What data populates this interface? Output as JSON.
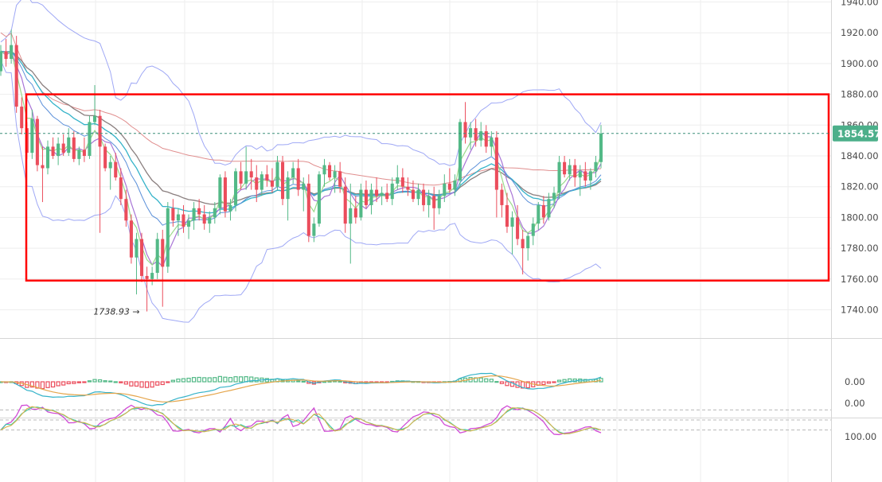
{
  "chart_data": {
    "type": "candlestick",
    "colors": {
      "up": "#53b987",
      "down": "#eb4d5c",
      "grid": "#eeeeee",
      "box": "#ff0000",
      "bb": "#9fa8f5",
      "ma_fast": "#9bd98b",
      "ma_mid": "#5a8fd9",
      "ma_slow": "#e08e8e",
      "ma_purple": "#a875d6",
      "ma_cyan": "#35b3c9",
      "ma_grey": "#8a7f7f"
    },
    "price_axis": {
      "min": 1730,
      "max": 1944,
      "ticks": [
        1940,
        1920,
        1900,
        1880,
        1860,
        1840,
        1820,
        1800,
        1780,
        1760,
        1740
      ],
      "labels": [
        "1940.00",
        "1920.00",
        "1900.00",
        "1880.00",
        "1860.00",
        "1840.00",
        "1820.00",
        "1800.00",
        "1780.00",
        "1760.00",
        "1740.00"
      ]
    },
    "last_price": 1854.57,
    "last_price_label": "1854.57",
    "low_annotation": "1738.93",
    "range_box": {
      "upper": 1880,
      "lower": 1759
    },
    "macd_axis": {
      "labels": [
        "0.00"
      ]
    },
    "stoch_axis": {
      "labels": [
        "100.00",
        "0.00"
      ],
      "levels": [
        80,
        50,
        20
      ]
    },
    "candles": [
      [
        1895,
        1912,
        1892,
        1908
      ],
      [
        1908,
        1916,
        1898,
        1903
      ],
      [
        1903,
        1922,
        1900,
        1912
      ],
      [
        1912,
        1918,
        1868,
        1872
      ],
      [
        1872,
        1878,
        1854,
        1858
      ],
      [
        1858,
        1862,
        1838,
        1842
      ],
      [
        1842,
        1870,
        1838,
        1864
      ],
      [
        1864,
        1866,
        1830,
        1834
      ],
      [
        1834,
        1846,
        1810,
        1832
      ],
      [
        1832,
        1850,
        1828,
        1846
      ],
      [
        1846,
        1852,
        1838,
        1840
      ],
      [
        1840,
        1852,
        1834,
        1848
      ],
      [
        1848,
        1854,
        1840,
        1842
      ],
      [
        1842,
        1858,
        1840,
        1852
      ],
      [
        1852,
        1856,
        1836,
        1838
      ],
      [
        1838,
        1846,
        1834,
        1844
      ],
      [
        1844,
        1852,
        1836,
        1840
      ],
      [
        1840,
        1866,
        1838,
        1862
      ],
      [
        1862,
        1886,
        1860,
        1866
      ],
      [
        1866,
        1870,
        1790,
        1846
      ],
      [
        1846,
        1848,
        1830,
        1832
      ],
      [
        1832,
        1840,
        1818,
        1836
      ],
      [
        1836,
        1842,
        1824,
        1826
      ],
      [
        1826,
        1832,
        1808,
        1812
      ],
      [
        1812,
        1818,
        1794,
        1798
      ],
      [
        1798,
        1802,
        1770,
        1774
      ],
      [
        1774,
        1790,
        1750,
        1786
      ],
      [
        1786,
        1790,
        1758,
        1762
      ],
      [
        1762,
        1768,
        1738.93,
        1760
      ],
      [
        1760,
        1768,
        1756,
        1764
      ],
      [
        1764,
        1790,
        1760,
        1786
      ],
      [
        1786,
        1792,
        1742,
        1768
      ],
      [
        1768,
        1810,
        1764,
        1806
      ],
      [
        1806,
        1812,
        1794,
        1798
      ],
      [
        1798,
        1806,
        1788,
        1802
      ],
      [
        1802,
        1808,
        1790,
        1794
      ],
      [
        1794,
        1802,
        1786,
        1798
      ],
      [
        1798,
        1810,
        1792,
        1806
      ],
      [
        1806,
        1812,
        1798,
        1802
      ],
      [
        1802,
        1808,
        1792,
        1796
      ],
      [
        1796,
        1804,
        1790,
        1800
      ],
      [
        1800,
        1810,
        1796,
        1806
      ],
      [
        1806,
        1828,
        1802,
        1826
      ],
      [
        1826,
        1830,
        1800,
        1804
      ],
      [
        1804,
        1812,
        1798,
        1808
      ],
      [
        1808,
        1832,
        1804,
        1830
      ],
      [
        1830,
        1836,
        1818,
        1822
      ],
      [
        1822,
        1846,
        1818,
        1830
      ],
      [
        1830,
        1838,
        1818,
        1826
      ],
      [
        1826,
        1834,
        1810,
        1818
      ],
      [
        1818,
        1830,
        1814,
        1828
      ],
      [
        1828,
        1834,
        1820,
        1824
      ],
      [
        1824,
        1832,
        1816,
        1820
      ],
      [
        1820,
        1840,
        1818,
        1836
      ],
      [
        1836,
        1840,
        1808,
        1812
      ],
      [
        1812,
        1830,
        1798,
        1826
      ],
      [
        1826,
        1836,
        1822,
        1832
      ],
      [
        1832,
        1838,
        1814,
        1818
      ],
      [
        1818,
        1826,
        1804,
        1822
      ],
      [
        1822,
        1828,
        1784,
        1788
      ],
      [
        1788,
        1800,
        1784,
        1796
      ],
      [
        1796,
        1830,
        1794,
        1828
      ],
      [
        1828,
        1838,
        1820,
        1834
      ],
      [
        1834,
        1836,
        1824,
        1826
      ],
      [
        1826,
        1834,
        1816,
        1830
      ],
      [
        1830,
        1836,
        1816,
        1820
      ],
      [
        1820,
        1826,
        1790,
        1796
      ],
      [
        1796,
        1822,
        1770,
        1806
      ],
      [
        1806,
        1814,
        1796,
        1800
      ],
      [
        1800,
        1822,
        1798,
        1818
      ],
      [
        1818,
        1824,
        1806,
        1808
      ],
      [
        1808,
        1822,
        1802,
        1818
      ],
      [
        1818,
        1826,
        1810,
        1814
      ],
      [
        1814,
        1820,
        1808,
        1816
      ],
      [
        1816,
        1822,
        1810,
        1812
      ],
      [
        1812,
        1826,
        1808,
        1822
      ],
      [
        1822,
        1834,
        1818,
        1826
      ],
      [
        1826,
        1832,
        1816,
        1820
      ],
      [
        1820,
        1826,
        1814,
        1818
      ],
      [
        1818,
        1824,
        1810,
        1812
      ],
      [
        1812,
        1822,
        1808,
        1818
      ],
      [
        1818,
        1822,
        1804,
        1808
      ],
      [
        1808,
        1818,
        1800,
        1814
      ],
      [
        1814,
        1820,
        1792,
        1806
      ],
      [
        1806,
        1818,
        1802,
        1814
      ],
      [
        1814,
        1828,
        1810,
        1822
      ],
      [
        1822,
        1832,
        1816,
        1818
      ],
      [
        1818,
        1828,
        1814,
        1824
      ],
      [
        1824,
        1864,
        1820,
        1862
      ],
      [
        1862,
        1875,
        1848,
        1852
      ],
      [
        1852,
        1862,
        1844,
        1858
      ],
      [
        1858,
        1864,
        1846,
        1850
      ],
      [
        1850,
        1862,
        1846,
        1856
      ],
      [
        1856,
        1860,
        1842,
        1846
      ],
      [
        1846,
        1856,
        1840,
        1852
      ],
      [
        1852,
        1856,
        1800,
        1818
      ],
      [
        1818,
        1822,
        1800,
        1808
      ],
      [
        1808,
        1816,
        1790,
        1794
      ],
      [
        1794,
        1804,
        1776,
        1800
      ],
      [
        1800,
        1808,
        1782,
        1786
      ],
      [
        1786,
        1792,
        1763,
        1780
      ],
      [
        1780,
        1790,
        1772,
        1788
      ],
      [
        1788,
        1800,
        1782,
        1796
      ],
      [
        1796,
        1810,
        1792,
        1808
      ],
      [
        1808,
        1814,
        1796,
        1800
      ],
      [
        1800,
        1816,
        1798,
        1812
      ],
      [
        1812,
        1820,
        1806,
        1816
      ],
      [
        1816,
        1840,
        1812,
        1836
      ],
      [
        1836,
        1840,
        1826,
        1828
      ],
      [
        1828,
        1838,
        1824,
        1834
      ],
      [
        1834,
        1838,
        1820,
        1826
      ],
      [
        1826,
        1834,
        1814,
        1830
      ],
      [
        1830,
        1836,
        1820,
        1824
      ],
      [
        1824,
        1832,
        1818,
        1830
      ],
      [
        1830,
        1840,
        1826,
        1836
      ],
      [
        1836,
        1860,
        1832,
        1854.57
      ]
    ]
  }
}
